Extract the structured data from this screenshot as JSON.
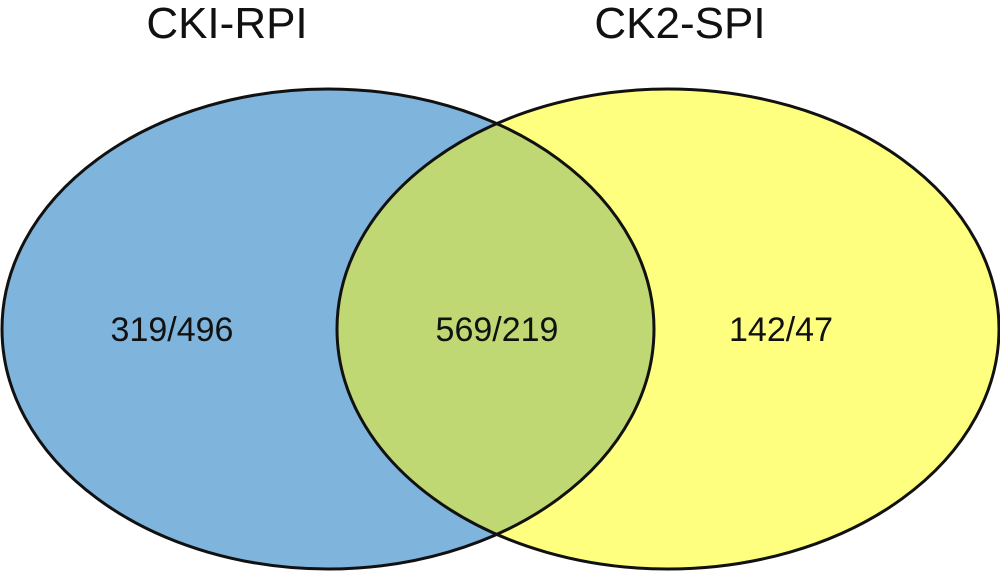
{
  "diagram": {
    "type": "venn",
    "sets": [
      {
        "id": "left",
        "title": "CKI-RPI",
        "fill_color": "#7fb4dc",
        "only_label": "319/496"
      },
      {
        "id": "right",
        "title": "CK2-SPI",
        "fill_color": "#ffff7f",
        "only_label": "142/47"
      }
    ],
    "overlap": {
      "label": "569/219",
      "fill_color": "#bfd873"
    },
    "outline_color": "#111111"
  }
}
